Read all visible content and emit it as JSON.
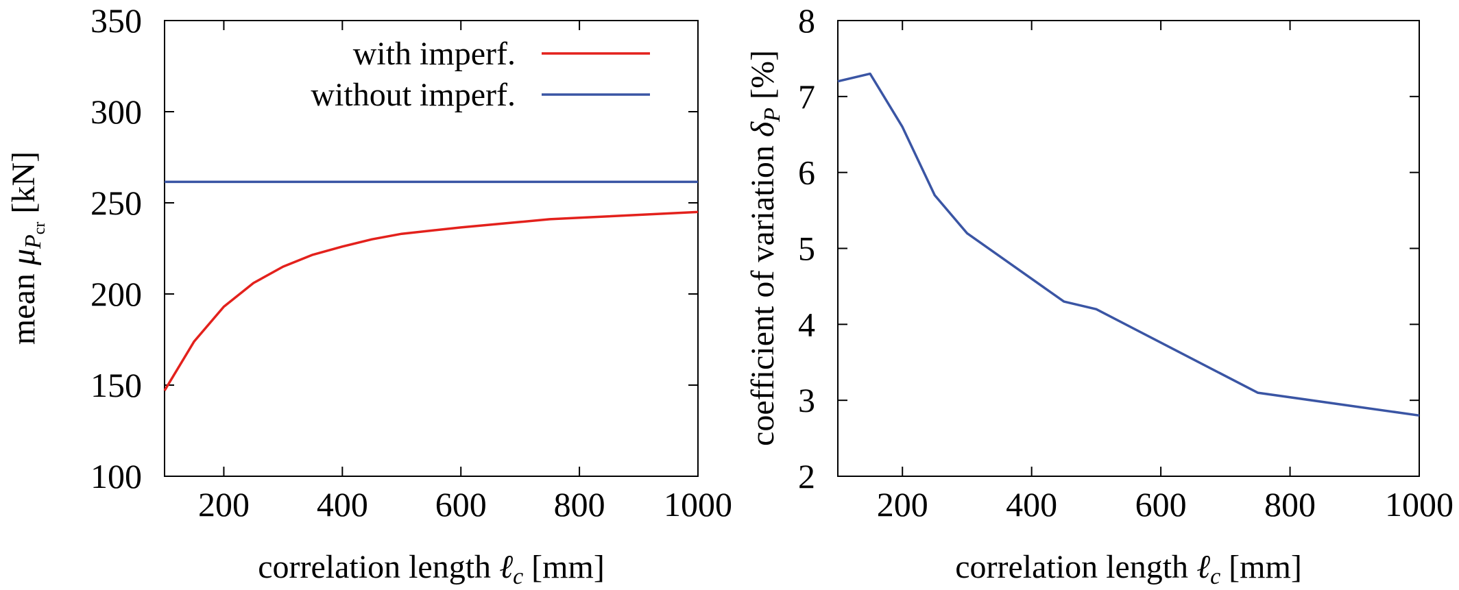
{
  "chart_data": [
    {
      "type": "line",
      "title": "",
      "xlabel_text": "correlation length ",
      "xlabel_symbol": "ℓ",
      "xlabel_sub": "c",
      "xlabel_unit": "  [mm]",
      "ylabel_text": "mean ",
      "ylabel_symbol": "μ",
      "ylabel_sub": "P",
      "ylabel_subsub": "cr",
      "ylabel_unit": " [kN]",
      "xlim": [
        100,
        1000
      ],
      "ylim": [
        100,
        350
      ],
      "xticks": [
        200,
        400,
        600,
        800,
        1000
      ],
      "yticks": [
        100,
        150,
        200,
        250,
        300,
        350
      ],
      "legend": "top-right",
      "grid": false,
      "series": [
        {
          "name": "with imperf.",
          "color": "#e3211c",
          "x": [
            100,
            150,
            200,
            250,
            300,
            350,
            400,
            450,
            500,
            600,
            700,
            750,
            800,
            1000
          ],
          "y": [
            147,
            174,
            193,
            206,
            215,
            221.5,
            226,
            230,
            233,
            236.5,
            239.5,
            241,
            241.8,
            245
          ]
        },
        {
          "name": "without imperf.",
          "color": "#3a55a4",
          "x": [
            100,
            1000
          ],
          "y": [
            261.5,
            261.5
          ]
        }
      ]
    },
    {
      "type": "line",
      "title": "",
      "xlabel_text": "correlation length ",
      "xlabel_symbol": "ℓ",
      "xlabel_sub": "c",
      "xlabel_unit": "  [mm]",
      "ylabel_text": "coefficient of variation ",
      "ylabel_symbol": "δ",
      "ylabel_sub": "P",
      "ylabel_unit": "  [%]",
      "xlim": [
        100,
        1000
      ],
      "ylim": [
        2,
        8
      ],
      "xticks": [
        200,
        400,
        600,
        800,
        1000
      ],
      "yticks": [
        2,
        3,
        4,
        5,
        6,
        7,
        8
      ],
      "grid": false,
      "series": [
        {
          "color": "#3a55a4",
          "x": [
            100,
            150,
            200,
            250,
            300,
            450,
            500,
            750,
            1000
          ],
          "y": [
            7.2,
            7.3,
            6.6,
            5.7,
            5.2,
            4.3,
            4.2,
            3.1,
            2.8
          ]
        }
      ]
    }
  ]
}
